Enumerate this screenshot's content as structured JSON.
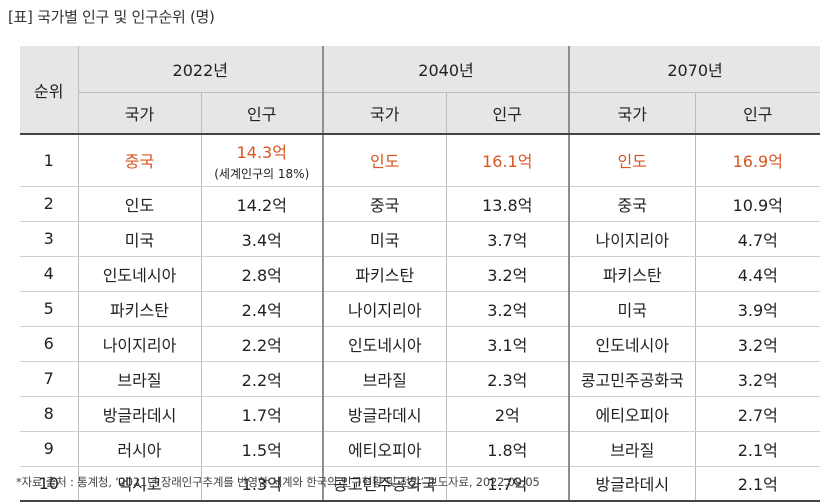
{
  "title": "[표] 국가별 인구 및 인구순위 (명)",
  "header": {
    "rank": "순위",
    "years": [
      "2022년",
      "2040년",
      "2070년"
    ],
    "country": "국가",
    "population": "인구"
  },
  "rows": [
    {
      "rank": "1",
      "c1": "중국",
      "p1": "14.3억",
      "p1_note": "(세계인구의 18%)",
      "c2": "인도",
      "p2": "16.1억",
      "c3": "인도",
      "p3": "16.9억"
    },
    {
      "rank": "2",
      "c1": "인도",
      "p1": "14.2억",
      "c2": "중국",
      "p2": "13.8억",
      "c3": "중국",
      "p3": "10.9억"
    },
    {
      "rank": "3",
      "c1": "미국",
      "p1": "3.4억",
      "c2": "미국",
      "p2": "3.7억",
      "c3": "나이지리아",
      "p3": "4.7억"
    },
    {
      "rank": "4",
      "c1": "인도네시아",
      "p1": "2.8억",
      "c2": "파키스탄",
      "p2": "3.2억",
      "c3": "파키스탄",
      "p3": "4.4억"
    },
    {
      "rank": "5",
      "c1": "파키스탄",
      "p1": "2.4억",
      "c2": "나이지리아",
      "p2": "3.2억",
      "c3": "미국",
      "p3": "3.9억"
    },
    {
      "rank": "6",
      "c1": "나이지리아",
      "p1": "2.2억",
      "c2": "인도네시아",
      "p2": "3.1억",
      "c3": "인도네시아",
      "p3": "3.2억"
    },
    {
      "rank": "7",
      "c1": "브라질",
      "p1": "2.2억",
      "c2": "브라질",
      "p2": "2.3억",
      "c3": "콩고민주공화국",
      "p3": "3.2억"
    },
    {
      "rank": "8",
      "c1": "방글라데시",
      "p1": "1.7억",
      "c2": "방글라데시",
      "p2": "2억",
      "c3": "에티오피아",
      "p3": "2.7억"
    },
    {
      "rank": "9",
      "c1": "러시아",
      "p1": "1.5억",
      "c2": "에티오피아",
      "p2": "1.8억",
      "c3": "브라질",
      "p3": "2.1억"
    },
    {
      "rank": "10",
      "c1": "멕시코",
      "p1": "1.3억",
      "c2": "콩고민주공화국",
      "p2": "1.7억",
      "c3": "방글라데시",
      "p3": "2.1억"
    }
  ],
  "source_note": "*자료 출처 : 통계청, ‘2021년 장래인구추계를 반영한 세계와 한국의 인구현황 및 전망’ 보도자료, 2022.09.05",
  "colors": {
    "highlight": "#d9541e",
    "header_bg": "#e6e6e6"
  }
}
